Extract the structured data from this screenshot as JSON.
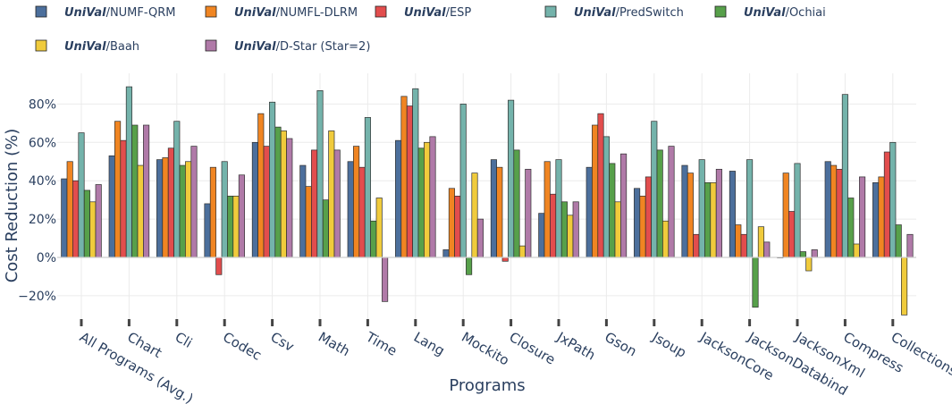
{
  "chart_data": {
    "type": "bar",
    "title": "",
    "xlabel": "Programs",
    "ylabel": "Cost Reduction (%)",
    "ylim": [
      -36,
      96
    ],
    "yticks": [
      -20,
      0,
      20,
      40,
      60,
      80
    ],
    "ytick_labels": [
      "−20%",
      "0%",
      "20%",
      "40%",
      "60%",
      "80%"
    ],
    "categories": [
      "All Programs (Avg.)",
      "Chart",
      "Cli",
      "Codec",
      "Csv",
      "Math",
      "Time",
      "Lang",
      "Mockito",
      "Closure",
      "JxPath",
      "Gson",
      "Jsoup",
      "JacksonCore",
      "JacksonDatabind",
      "JacksonXml",
      "Compress",
      "Collections"
    ],
    "legend_position": "top",
    "series": [
      {
        "name": "UniVal/NUMF-QRM",
        "prefix": "UniVal",
        "suffix": "/NUMF-QRM",
        "color": "#4c6f9c",
        "values": [
          41,
          53,
          51,
          28,
          60,
          48,
          50,
          61,
          4,
          51,
          23,
          47,
          36,
          48,
          45,
          0,
          50,
          39
        ]
      },
      {
        "name": "UniVal/NUMFL-DLRM",
        "prefix": "UniVal",
        "suffix": "/NUMFL-DLRM",
        "color": "#f08522",
        "values": [
          50,
          71,
          52,
          47,
          75,
          37,
          58,
          84,
          36,
          47,
          50,
          69,
          32,
          44,
          17,
          44,
          48,
          42
        ]
      },
      {
        "name": "UniVal/ESP",
        "prefix": "UniVal",
        "suffix": "/ESP",
        "color": "#e24d4d",
        "values": [
          40,
          61,
          57,
          -9,
          58,
          56,
          47,
          79,
          32,
          -2,
          33,
          75,
          42,
          12,
          12,
          24,
          46,
          55
        ]
      },
      {
        "name": "UniVal/PredSwitch",
        "prefix": "UniVal",
        "suffix": "/PredSwitch",
        "color": "#74b3ab",
        "values": [
          65,
          89,
          71,
          50,
          81,
          87,
          73,
          88,
          80,
          82,
          51,
          63,
          71,
          51,
          51,
          49,
          85,
          60
        ]
      },
      {
        "name": "UniVal/Ochiai",
        "prefix": "UniVal",
        "suffix": "/Ochiai",
        "color": "#57a04a",
        "values": [
          35,
          69,
          48,
          32,
          68,
          30,
          19,
          57,
          -9,
          56,
          29,
          49,
          56,
          39,
          -26,
          3,
          31,
          17
        ]
      },
      {
        "name": "UniVal/Baah",
        "prefix": "UniVal",
        "suffix": "/Baah",
        "color": "#f0cb3c",
        "values": [
          29,
          48,
          50,
          32,
          66,
          66,
          31,
          60,
          44,
          6,
          22,
          29,
          19,
          39,
          16,
          -7,
          7,
          -30
        ]
      },
      {
        "name": "UniVal/D-Star (Star=2)",
        "prefix": "UniVal",
        "suffix": "/D-Star (Star=2)",
        "color": "#b07aa8",
        "values": [
          38,
          69,
          58,
          43,
          62,
          56,
          -23,
          63,
          20,
          46,
          29,
          54,
          58,
          46,
          8,
          4,
          42,
          12
        ]
      }
    ]
  }
}
